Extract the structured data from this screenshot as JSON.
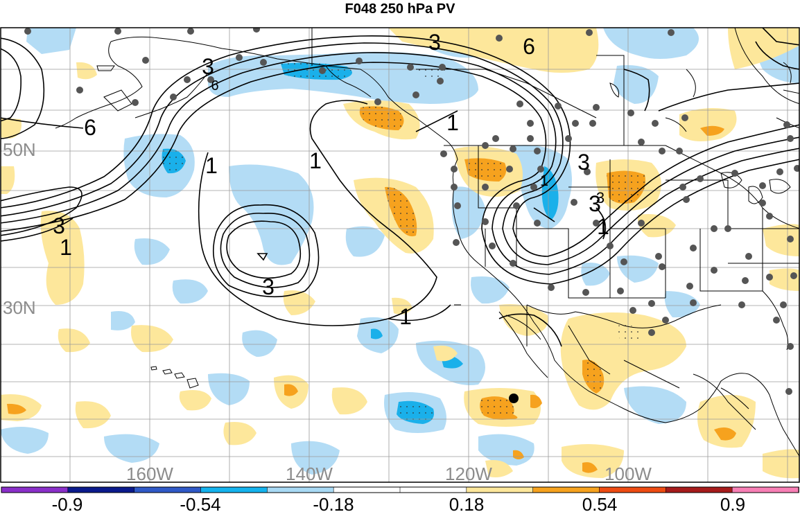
{
  "title": "F048 250 hPa PV",
  "map": {
    "lat_labels": [
      "50N",
      "30N"
    ],
    "lon_labels": [
      "160W",
      "140W",
      "120W",
      "100W"
    ],
    "contour_labels": [
      "3",
      "6",
      "3",
      "6",
      "3",
      "6",
      "1",
      "1",
      "1",
      "1",
      "3",
      "1",
      "3",
      "3",
      "3",
      "1",
      "1"
    ],
    "colors": {
      "light_blue": "#b3dcf5",
      "mid_blue": "#1ab0ea",
      "light_orange": "#fde79b",
      "mid_orange": "#f6a21e",
      "station_dot": "#555555",
      "frame": "#000000"
    }
  },
  "colorbar": {
    "tick_labels": [
      "-0.9",
      "-0.54",
      "-0.18",
      "0.18",
      "0.54",
      "0.9"
    ],
    "colors": [
      "#8a2fc9",
      "#0a1a8c",
      "#2f59c7",
      "#14b3ee",
      "#a8d9f4",
      "#ffffff",
      "#ffffff",
      "#fde79b",
      "#f6a21e",
      "#ee4b12",
      "#a61b1b",
      "#f77fb5"
    ]
  }
}
